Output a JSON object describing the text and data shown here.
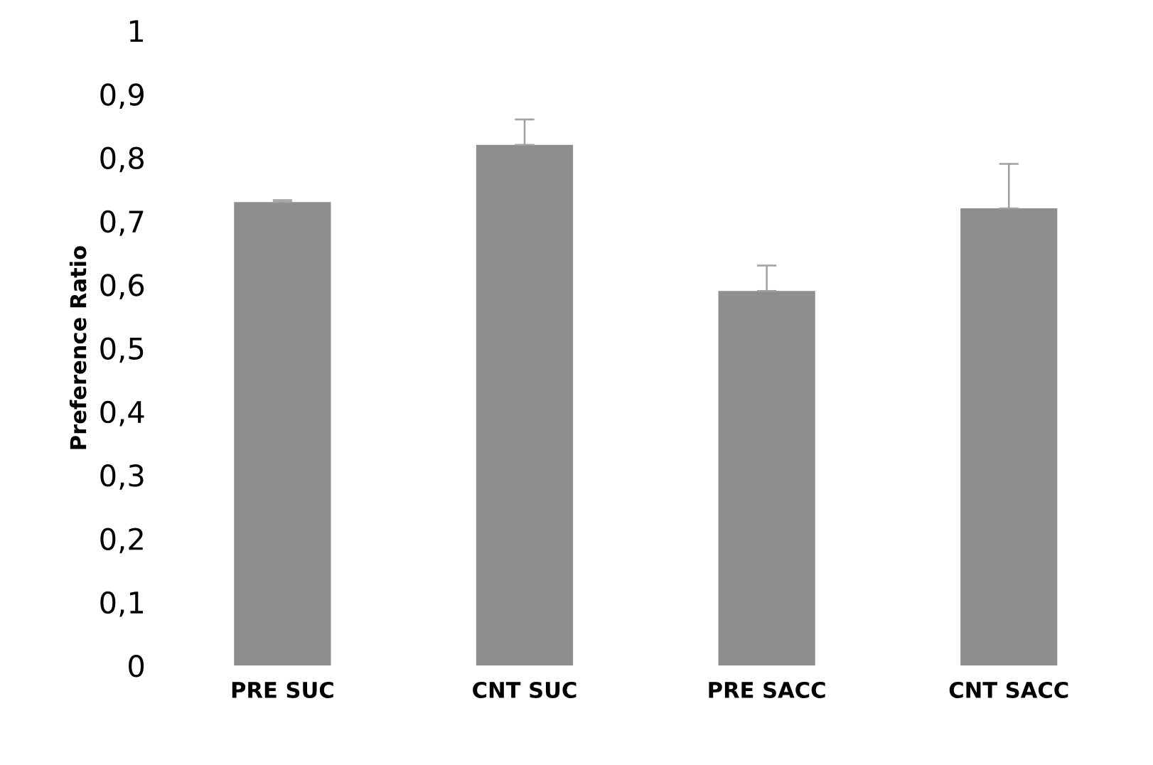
{
  "chart_data": {
    "type": "bar",
    "ylabel": "Preference Ratio",
    "categories": [
      "PRE SUC",
      "CNT SUC",
      "PRE SACC",
      "CNT SACC"
    ],
    "values": [
      0.73,
      0.82,
      0.59,
      0.72
    ],
    "errors": [
      [
        0.73,
        0.733
      ],
      [
        0.82,
        0.86
      ],
      [
        0.59,
        0.63
      ],
      [
        0.72,
        0.79
      ]
    ],
    "color": "#8e8e8e",
    "ylim": [
      0,
      1
    ],
    "yticks": [
      0,
      {
        "value": 0.1,
        "label": "0,1"
      },
      {
        "value": 0.2,
        "label": "0,2"
      },
      {
        "value": 0.3,
        "label": "0,3"
      },
      {
        "value": 0.4,
        "label": "0,4"
      },
      {
        "value": 0.5,
        "label": "0,5"
      },
      {
        "value": 0.6,
        "label": "0,6"
      },
      {
        "value": 0.7,
        "label": "0,7"
      },
      {
        "value": 0.8,
        "label": "0,8"
      },
      {
        "value": 0.9,
        "label": "0,9"
      },
      1
    ],
    "grid": false
  }
}
